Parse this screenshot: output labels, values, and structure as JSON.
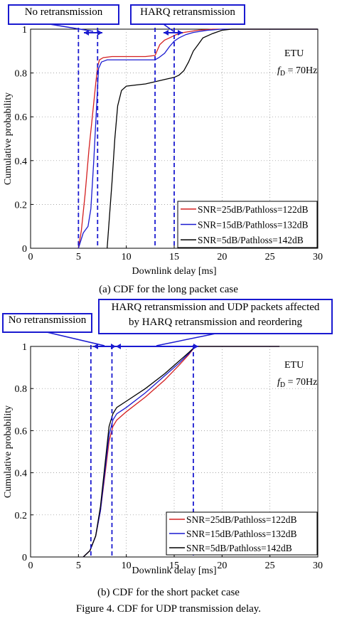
{
  "chart_data": [
    {
      "type": "line",
      "title": "",
      "xlabel": "Downlink delay [ms]",
      "ylabel": "Cumulative probability",
      "xlim": [
        0,
        30
      ],
      "ylim": [
        0,
        1
      ],
      "xticks": [
        "0",
        "5",
        "10",
        "15",
        "20",
        "25",
        "30"
      ],
      "yticks": [
        "0",
        "0.2",
        "0.4",
        "0.6",
        "0.8",
        "1"
      ],
      "grid": true,
      "legend_position": "bottom-right",
      "text_annotation": {
        "line1": "ETU",
        "line2_pre": "f",
        "line2_sub": "D",
        "line2_post": " = 70Hz"
      },
      "callouts": [
        "No retransmission",
        "HARQ retransmission"
      ],
      "vlines": [
        5,
        7,
        13,
        15
      ],
      "series": [
        {
          "name": "SNR=25dB/Pathloss=122dB",
          "color": "#d42020",
          "x": [
            5,
            5.3,
            5.7,
            6.1,
            6.5,
            6.8,
            7.0,
            7.2,
            7.6,
            8.5,
            10,
            12,
            13.0,
            13.2,
            13.5,
            14,
            14.5,
            15.2,
            16,
            17.5,
            19,
            20,
            30
          ],
          "y": [
            0,
            0.08,
            0.25,
            0.45,
            0.62,
            0.75,
            0.83,
            0.86,
            0.87,
            0.875,
            0.875,
            0.875,
            0.88,
            0.9,
            0.93,
            0.95,
            0.96,
            0.975,
            0.985,
            0.995,
            1.0,
            1.0,
            1.0
          ]
        },
        {
          "name": "SNR=15dB/Pathloss=132dB",
          "color": "#1a1ad0",
          "x": [
            5,
            5.5,
            6,
            6.3,
            6.6,
            6.9,
            7.1,
            7.4,
            8,
            9,
            10,
            12,
            13.0,
            13.4,
            14,
            14.5,
            15.0,
            15.5,
            16.2,
            17,
            18.5,
            20,
            30
          ],
          "y": [
            0,
            0.07,
            0.1,
            0.18,
            0.4,
            0.65,
            0.82,
            0.85,
            0.86,
            0.86,
            0.86,
            0.86,
            0.86,
            0.87,
            0.89,
            0.92,
            0.945,
            0.96,
            0.975,
            0.985,
            0.995,
            1.0,
            1.0
          ]
        },
        {
          "name": "SNR=5dB/Pathloss=142dB",
          "color": "#000000",
          "x": [
            8,
            8.2,
            8.5,
            8.8,
            9.1,
            9.5,
            10,
            11,
            12,
            13,
            14,
            15,
            15.5,
            16,
            16.5,
            17,
            17.5,
            18,
            19,
            20,
            21,
            30
          ],
          "y": [
            0,
            0.12,
            0.3,
            0.5,
            0.65,
            0.72,
            0.74,
            0.745,
            0.75,
            0.76,
            0.77,
            0.78,
            0.79,
            0.81,
            0.85,
            0.9,
            0.93,
            0.96,
            0.98,
            0.995,
            1.0,
            1.0
          ]
        }
      ]
    },
    {
      "type": "line",
      "title": "",
      "xlabel": "Downlink delay [ms]",
      "ylabel": "Cumulative probability",
      "xlim": [
        0,
        30
      ],
      "ylim": [
        0,
        1
      ],
      "xticks": [
        "0",
        "5",
        "10",
        "15",
        "20",
        "25",
        "30"
      ],
      "yticks": [
        "0",
        "0.2",
        "0.4",
        "0.6",
        "0.8",
        "1"
      ],
      "grid": true,
      "legend_position": "bottom-right",
      "text_annotation": {
        "line1": "ETU",
        "line2_pre": "f",
        "line2_sub": "D",
        "line2_post": " = 70Hz"
      },
      "callouts": [
        "No retransmission",
        "HARQ retransmission and UDP packets affected",
        "by HARQ retransmission and reordering"
      ],
      "vlines": [
        6.3,
        8.5,
        17
      ],
      "series": [
        {
          "name": "SNR=25dB/Pathloss=122dB",
          "color": "#d42020",
          "x": [
            5.5,
            6.2,
            6.8,
            7.3,
            7.8,
            8.2,
            8.6,
            9.0,
            10,
            12,
            14,
            15.5,
            16.5,
            17.2,
            20,
            26
          ],
          "y": [
            0,
            0.03,
            0.1,
            0.22,
            0.4,
            0.55,
            0.62,
            0.65,
            0.69,
            0.76,
            0.84,
            0.91,
            0.96,
            1.0,
            1.0,
            1.0
          ]
        },
        {
          "name": "SNR=15dB/Pathloss=132dB",
          "color": "#1a1ad0",
          "x": [
            5.5,
            6.2,
            6.8,
            7.3,
            7.8,
            8.2,
            8.6,
            9.0,
            10,
            12,
            14,
            15.5,
            16.5,
            17.2,
            20,
            26
          ],
          "y": [
            0,
            0.03,
            0.1,
            0.22,
            0.42,
            0.58,
            0.65,
            0.68,
            0.71,
            0.78,
            0.86,
            0.92,
            0.965,
            1.0,
            1.0,
            1.0
          ]
        },
        {
          "name": "SNR=5dB/Pathloss=142dB",
          "color": "#000000",
          "x": [
            5.5,
            6.2,
            6.8,
            7.3,
            7.8,
            8.2,
            8.6,
            9.0,
            10,
            12,
            14,
            15.5,
            16.5,
            17.2,
            20,
            26
          ],
          "y": [
            0,
            0.03,
            0.1,
            0.24,
            0.45,
            0.62,
            0.68,
            0.71,
            0.74,
            0.8,
            0.87,
            0.93,
            0.97,
            1.0,
            1.0,
            1.0
          ]
        }
      ]
    }
  ],
  "captions": {
    "a": "(a)    CDF for the long packet case",
    "b": "(b)    CDF for the short packet case",
    "figure": "Figure 4. CDF for UDP transmission delay."
  }
}
